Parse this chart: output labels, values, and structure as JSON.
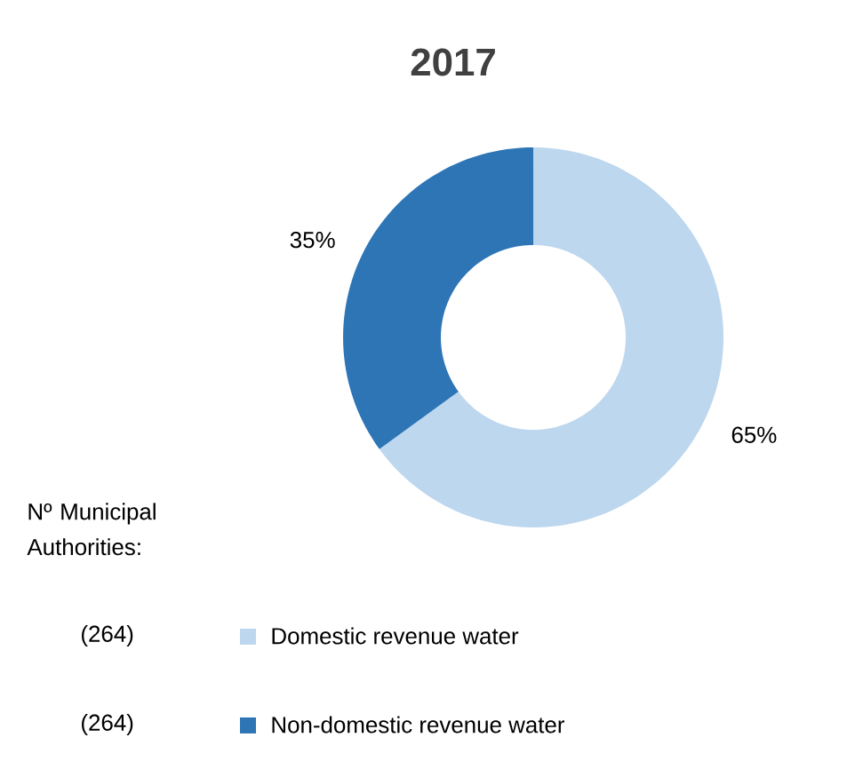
{
  "chart_data": {
    "type": "donut",
    "title": "2017",
    "categories": [
      "Domestic revenue water",
      "Non-domestic revenue water"
    ],
    "values": [
      65,
      35
    ],
    "colors": [
      "#bdd7ee",
      "#2e75b6"
    ],
    "value_labels": [
      "65%",
      "35%"
    ],
    "legend": "bottom left",
    "legend_title": "Nº Municipal Authorities:",
    "annotations": [
      "(264)",
      "(264)"
    ]
  }
}
